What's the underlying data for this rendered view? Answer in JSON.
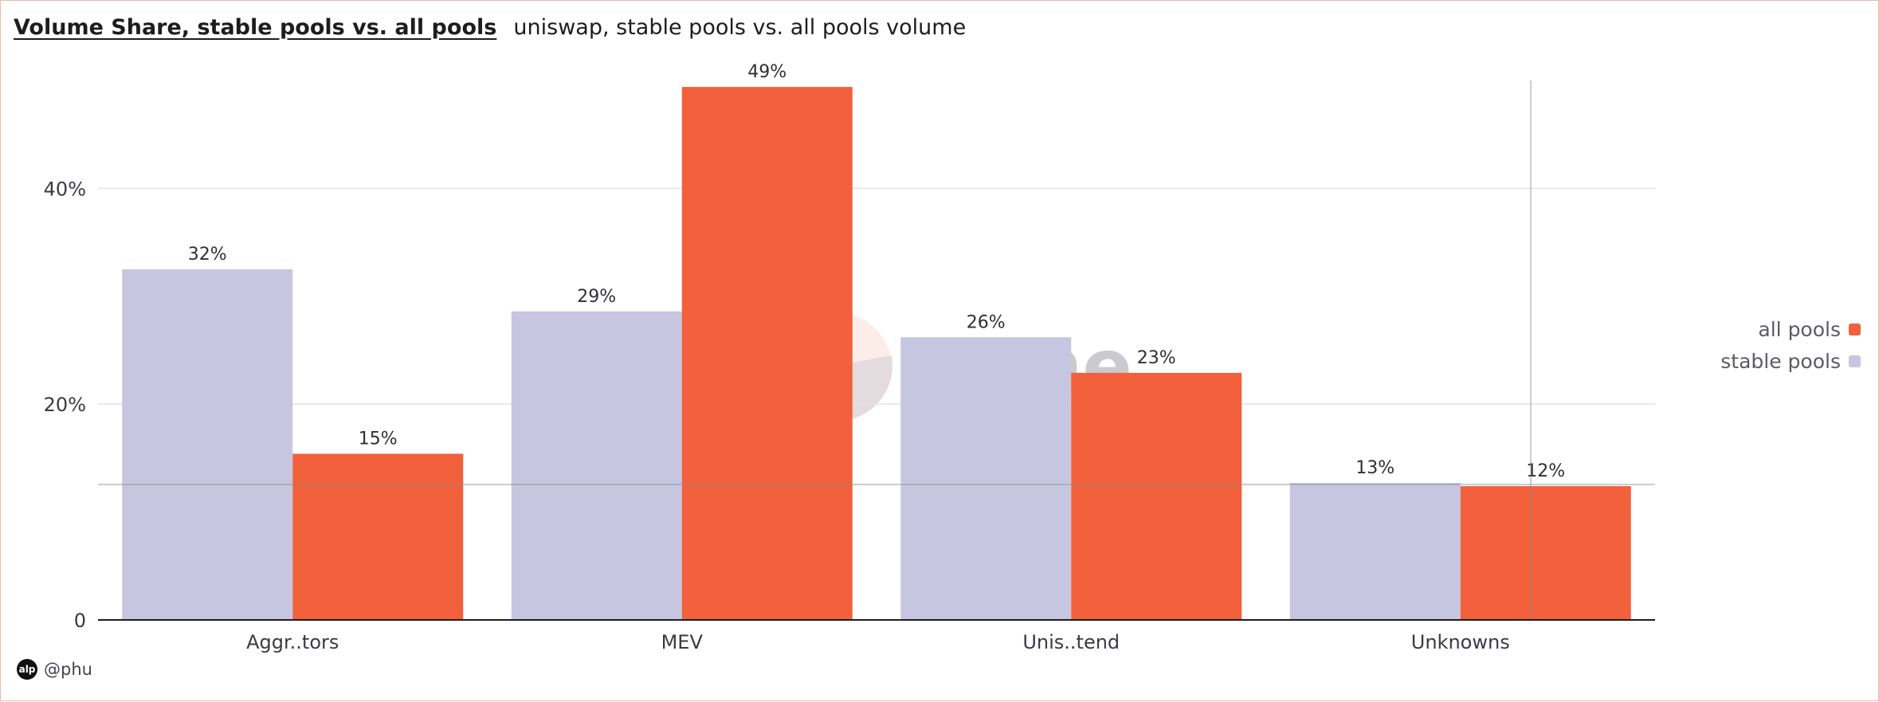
{
  "header": {
    "title": "Volume Share, stable pools vs. all pools",
    "subtitle": "uniswap, stable pools vs. all pools volume"
  },
  "legend": [
    {
      "label": "all pools",
      "color": "#f2603c"
    },
    {
      "label": "stable pools",
      "color": "#c6c6e0"
    }
  ],
  "credit": {
    "icon": "dune-avatar-icon",
    "icon_text": "alp",
    "handle": "@phu"
  },
  "watermark": {
    "text": "Dune"
  },
  "chart_data": {
    "type": "bar",
    "title": "Volume Share, stable pools vs. all pools",
    "subtitle": "uniswap, stable pools vs. all pools volume",
    "categories": [
      "Aggr..tors",
      "MEV",
      "Unis..tend",
      "Unknowns"
    ],
    "series": [
      {
        "name": "stable pools",
        "color": "#c6c6e0",
        "values": [
          32.5,
          28.6,
          26.2,
          12.7
        ],
        "labels": [
          "32%",
          "29%",
          "26%",
          "13%"
        ]
      },
      {
        "name": "all pools",
        "color": "#f2603c",
        "values": [
          15.4,
          49.4,
          22.9,
          12.4
        ],
        "labels": [
          "15%",
          "49%",
          "23%",
          "12%"
        ]
      }
    ],
    "yticks": [
      {
        "value": 0,
        "label": "0"
      },
      {
        "value": 20,
        "label": "20%"
      },
      {
        "value": 40,
        "label": "40%"
      }
    ],
    "ylim": [
      0,
      50
    ],
    "xlabel": "",
    "ylabel": "",
    "grid": true,
    "legend_position": "right"
  }
}
